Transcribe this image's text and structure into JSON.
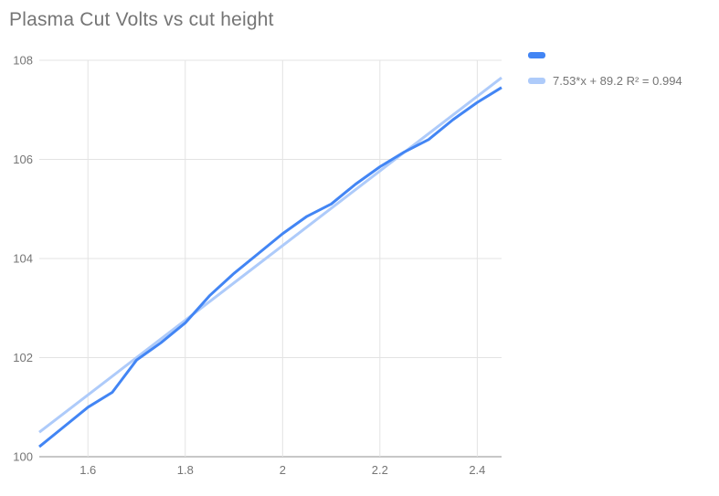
{
  "chart_data": {
    "type": "line",
    "title": "Plasma Cut Volts vs cut height",
    "xlabel": "",
    "ylabel": "",
    "xlim": [
      1.5,
      2.45
    ],
    "ylim": [
      100,
      108
    ],
    "grid": true,
    "legend_position": "right",
    "x_ticks": {
      "values": [
        1.6,
        1.8,
        2.0,
        2.2,
        2.4
      ],
      "labels": [
        "1.6",
        "1.8",
        "2",
        "2.2",
        "2.4"
      ]
    },
    "y_ticks": {
      "values": [
        100,
        102,
        104,
        106,
        108
      ],
      "labels": [
        "100",
        "102",
        "104",
        "106",
        "108"
      ]
    },
    "x": [
      1.5,
      1.55,
      1.6,
      1.65,
      1.7,
      1.75,
      1.8,
      1.85,
      1.9,
      1.95,
      2.0,
      2.05,
      2.1,
      2.15,
      2.2,
      2.25,
      2.3,
      2.35,
      2.4,
      2.45
    ],
    "series": [
      {
        "name": "",
        "kind": "data",
        "color": "#4285f4",
        "values": [
          100.2,
          100.6,
          101.0,
          101.3,
          101.95,
          102.3,
          102.7,
          103.25,
          103.7,
          104.1,
          104.5,
          104.85,
          105.1,
          105.5,
          105.85,
          106.15,
          106.4,
          106.8,
          107.15,
          107.45
        ]
      },
      {
        "name": "7.53*x + 89.2 R² = 0.994",
        "kind": "trendline",
        "color": "#aecbfa",
        "slope": 7.53,
        "intercept": 89.2,
        "r_squared": 0.994
      }
    ]
  },
  "colors": {
    "title_text": "#757575",
    "tick_text": "#757575",
    "gridline": "#e3e3e3",
    "axis_line": "#8f8f8f",
    "background": "#ffffff"
  }
}
